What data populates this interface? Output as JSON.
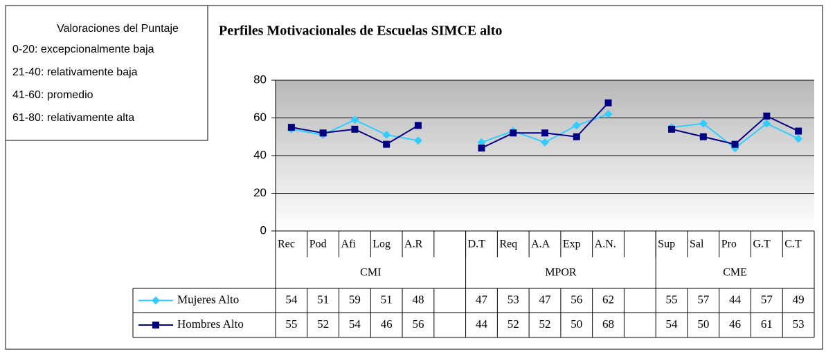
{
  "chart_data": {
    "type": "line",
    "title": "Perfiles Motivacionales de Escuelas SIMCE alto",
    "annotations": {
      "title": "Valoraciones del Puntaje",
      "lines": [
        "0-20: excepcionalmente baja",
        "21-40: relativamente baja",
        "41-60: promedio",
        "61-80: relativamente alta"
      ]
    },
    "categories": [
      "Rec",
      "Pod",
      "Afi",
      "Log",
      "A.R",
      null,
      "D.T",
      "Req",
      "A.A",
      "Exp",
      "A.N.",
      null,
      "Sup",
      "Sal",
      "Pro",
      "G.T",
      "C.T"
    ],
    "groups": [
      {
        "name": "CMI",
        "count": 6
      },
      {
        "name": "MPOR",
        "count": 6
      },
      {
        "name": "CME",
        "count": 5
      }
    ],
    "series": [
      {
        "name": "Mujeres Alto",
        "color": "#33ccff",
        "marker": "diamond",
        "values": [
          54,
          51,
          59,
          51,
          48,
          null,
          47,
          53,
          47,
          56,
          62,
          null,
          55,
          57,
          44,
          57,
          49
        ]
      },
      {
        "name": "Hombres Alto",
        "color": "#000080",
        "marker": "square",
        "values": [
          55,
          52,
          54,
          46,
          56,
          null,
          44,
          52,
          52,
          50,
          68,
          null,
          54,
          50,
          46,
          61,
          53
        ]
      }
    ],
    "ylim": [
      0,
      80
    ],
    "yticks": [
      0,
      20,
      40,
      60,
      80
    ],
    "grid": true
  }
}
